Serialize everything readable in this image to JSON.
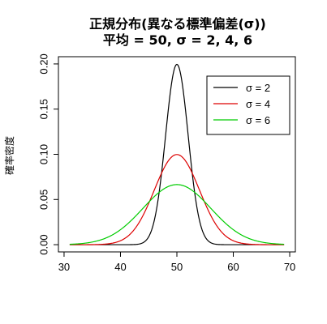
{
  "chart_data": {
    "type": "line",
    "title": "正規分布(異なる標準偏差(σ))",
    "subtitle": "平均 = 50, σ = 2, 4, 6",
    "xlabel": "",
    "ylabel": "確率密度",
    "mean": 50,
    "xlim": [
      29,
      71
    ],
    "ylim": [
      -0.008,
      0.208
    ],
    "x_ticks": [
      30,
      40,
      50,
      60,
      70
    ],
    "y_ticks": [
      0.0,
      0.05,
      0.1,
      0.15,
      0.2
    ],
    "x_tick_labels": [
      "30",
      "40",
      "50",
      "60",
      "70"
    ],
    "y_tick_labels": [
      "0.00",
      "0.05",
      "0.10",
      "0.15",
      "0.20"
    ],
    "x_range": [
      31,
      69
    ],
    "grid": false,
    "legend_position": "top-right",
    "series": [
      {
        "name": "σ = 2",
        "sigma": 2,
        "color": "#000000"
      },
      {
        "name": "σ = 4",
        "sigma": 4,
        "color": "#dd0000"
      },
      {
        "name": "σ = 6",
        "sigma": 6,
        "color": "#00cc00"
      }
    ]
  }
}
